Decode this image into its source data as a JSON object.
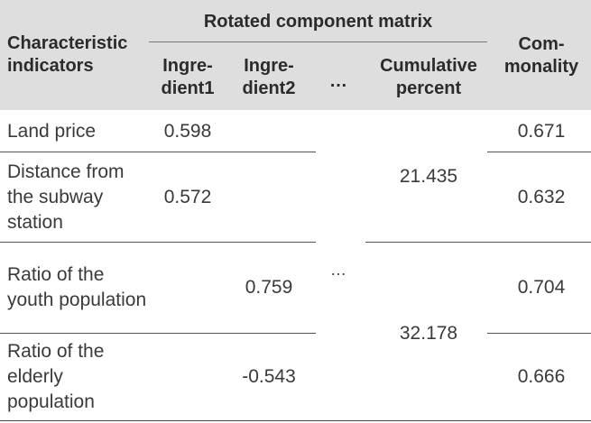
{
  "table": {
    "header": {
      "characteristic": "Characteristic indicators",
      "group": "Rotated component matrix",
      "ingredient1": "Ingre-dient1",
      "ingredient2": "Ingre-dient2",
      "ellipsis": "…",
      "cumulative": "Cumulative percent",
      "commonality": "Com-monality"
    },
    "rows": [
      {
        "indicator": "Land price",
        "ingredient1": "0.598",
        "ingredient2": "",
        "commonality": "0.671"
      },
      {
        "indicator": "Distance from the subway station",
        "ingredient1": "0.572",
        "ingredient2": "",
        "commonality": "0.632"
      },
      {
        "indicator": "Ratio of the youth population",
        "ingredient1": "",
        "ingredient2": "0.759",
        "commonality": "0.704"
      },
      {
        "indicator": "Ratio of the elderly population",
        "ingredient1": "",
        "ingredient2": "-0.543",
        "commonality": "0.666"
      }
    ],
    "merged": {
      "cumulative_group1": "21.435",
      "cumulative_group2": "32.178",
      "ellipsis_body": "…"
    }
  }
}
